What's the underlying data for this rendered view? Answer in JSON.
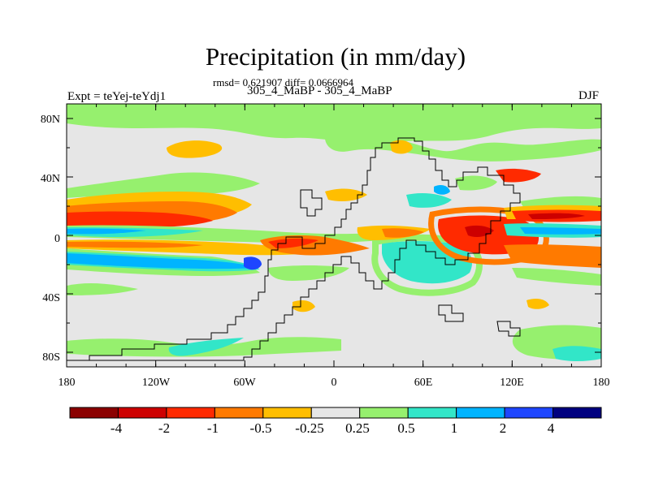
{
  "title": "Precipitation (in mm/day)",
  "stats_text": "rmsd= 0.621907 diff= 0.0666964",
  "subtitle": "305_4_MaBP - 305_4_MaBP",
  "left_label": "Expt = teYej-teYdj1",
  "right_label": "DJF",
  "lat_labels": [
    "80N",
    "40N",
    "0",
    "40S",
    "80S"
  ],
  "lon_labels": [
    "180",
    "120W",
    "60W",
    "0",
    "60E",
    "120E",
    "180"
  ],
  "colorbar": {
    "colors": [
      "#8b0000",
      "#cd0000",
      "#ff2a00",
      "#ff7a00",
      "#ffbe00",
      "#e6e6e6",
      "#96f06e",
      "#32e6c8",
      "#00b4ff",
      "#1e46ff",
      "#000080"
    ],
    "labels": [
      "-4",
      "-2",
      "-1",
      "-0.5",
      "-0.25",
      "0.25",
      "0.5",
      "1",
      "2",
      "4"
    ]
  },
  "palette": {
    "neutral": "#e6e6e6",
    "dark_red": "#8b0000",
    "red": "#cd0000",
    "red_orange": "#ff2a00",
    "orange": "#ff7a00",
    "yellow": "#ffbe00",
    "green": "#96f06e",
    "aqua": "#32e6c8",
    "cyan": "#00b4ff",
    "blue": "#1e46ff",
    "navy": "#000080"
  }
}
